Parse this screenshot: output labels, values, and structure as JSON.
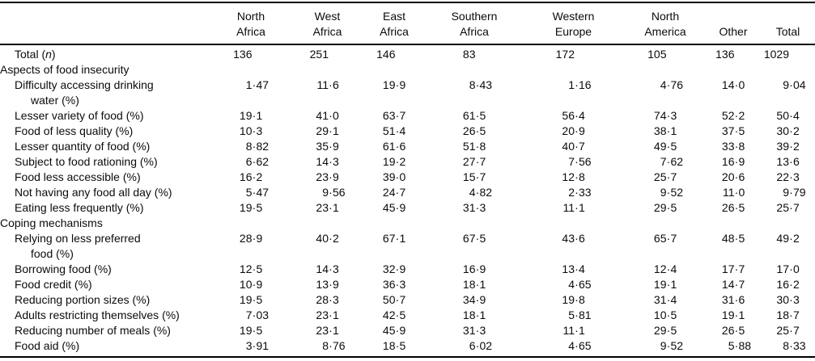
{
  "table": {
    "columns": [
      {
        "label": "North Africa",
        "lines": [
          "North",
          "Africa"
        ]
      },
      {
        "label": "West Africa",
        "lines": [
          "West",
          "Africa"
        ]
      },
      {
        "label": "East Africa",
        "lines": [
          "East",
          "Africa"
        ]
      },
      {
        "label": "Southern Africa",
        "lines": [
          "Southern",
          "Africa"
        ]
      },
      {
        "label": "Western Europe",
        "lines": [
          "Western",
          "Europe"
        ]
      },
      {
        "label": "North America",
        "lines": [
          "North",
          "America"
        ]
      },
      {
        "label": "Other",
        "lines": [
          "Other"
        ]
      },
      {
        "label": "Total",
        "lines": [
          "Total"
        ]
      }
    ],
    "rows": [
      {
        "label": "Total (n)",
        "label_parts": [
          {
            "text": "Total (",
            "italic": false
          },
          {
            "text": "n",
            "italic": true
          },
          {
            "text": ")",
            "italic": false
          }
        ],
        "values": [
          "136",
          "251",
          "146",
          "83",
          "172",
          "105",
          "136",
          "1029"
        ]
      },
      {
        "label": "Aspects of food insecurity",
        "section": true
      },
      {
        "label": "Difficulty accessing drinking",
        "line2": "water (%)",
        "values": [
          "1·47",
          "11·6",
          "19·9",
          "8·43",
          "1·16",
          "4·76",
          "14·0",
          "9·04"
        ]
      },
      {
        "label": "Lesser variety of food (%)",
        "values": [
          "19·1",
          "41·0",
          "63·7",
          "61·5",
          "56·4",
          "74·3",
          "52·2",
          "50·4"
        ]
      },
      {
        "label": "Food of less quality (%)",
        "values": [
          "10·3",
          "29·1",
          "51·4",
          "26·5",
          "20·9",
          "38·1",
          "37·5",
          "30·2"
        ]
      },
      {
        "label": "Lesser quantity of food (%)",
        "values": [
          "8·82",
          "35·9",
          "61·6",
          "51·8",
          "40·7",
          "49·5",
          "33·8",
          "39·2"
        ]
      },
      {
        "label": "Subject to food rationing (%)",
        "values": [
          "6·62",
          "14·3",
          "19·2",
          "27·7",
          "7·56",
          "7·62",
          "16·9",
          "13·6"
        ]
      },
      {
        "label": "Food less accessible (%)",
        "values": [
          "16·2",
          "23·9",
          "39·0",
          "15·7",
          "12·8",
          "25·7",
          "20·6",
          "22·3"
        ]
      },
      {
        "label": "Not having any food all day (%)",
        "values": [
          "5·47",
          "9·56",
          "24·7",
          "4·82",
          "2·33",
          "9·52",
          "11·0",
          "9·79"
        ]
      },
      {
        "label": "Eating less frequently (%)",
        "values": [
          "19·5",
          "23·1",
          "45·9",
          "31·3",
          "11·1",
          "29·5",
          "26·5",
          "25·7"
        ]
      },
      {
        "label": "Coping mechanisms",
        "section": true
      },
      {
        "label": "Relying on less preferred",
        "line2": "food (%)",
        "values": [
          "28·9",
          "40·2",
          "67·1",
          "67·5",
          "43·6",
          "65·7",
          "48·5",
          "49·2"
        ]
      },
      {
        "label": "Borrowing food (%)",
        "values": [
          "12·5",
          "14·3",
          "32·9",
          "16·9",
          "13·4",
          "12·4",
          "17·7",
          "17·0"
        ]
      },
      {
        "label": "Food credit (%)",
        "values": [
          "10·9",
          "13·9",
          "36·3",
          "18·1",
          "4·65",
          "19·1",
          "14·7",
          "16·2"
        ]
      },
      {
        "label": "Reducing portion sizes (%)",
        "values": [
          "19·5",
          "28·3",
          "50·7",
          "34·9",
          "19·8",
          "31·4",
          "31·6",
          "30·3"
        ]
      },
      {
        "label": "Adults restricting themselves (%)",
        "values": [
          "7·03",
          "23·1",
          "42·5",
          "18·1",
          "5·81",
          "10·5",
          "19·1",
          "18·7"
        ]
      },
      {
        "label": "Reducing number of meals (%)",
        "values": [
          "19·5",
          "23·1",
          "45·9",
          "31·3",
          "11·1",
          "29·5",
          "26·5",
          "25·7"
        ]
      },
      {
        "label": "Food aid (%)",
        "values": [
          "3·91",
          "8·76",
          "18·5",
          "6·02",
          "4·65",
          "9·52",
          "5·88",
          "8·33"
        ]
      }
    ]
  }
}
